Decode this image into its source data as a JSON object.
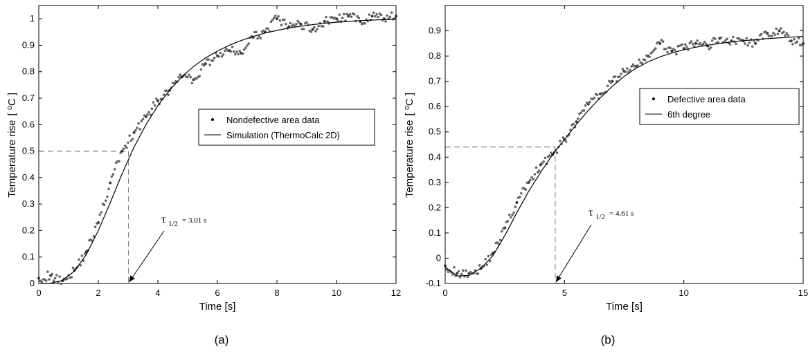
{
  "chart_data": [
    {
      "type": "scatter",
      "panel_label": "(a)",
      "xlabel": "Time [s]",
      "ylabel": "Temperature rise",
      "ylabel_unit": "[ ⁰C ]",
      "xlim": [
        0,
        12
      ],
      "ylim": [
        0,
        1.05
      ],
      "xticks": [
        0,
        2,
        4,
        6,
        8,
        10,
        12
      ],
      "xtick_labels": [
        "0",
        "2",
        "4",
        "6",
        "8",
        "10",
        "12"
      ],
      "yticks": [
        0,
        0.1,
        0.2,
        0.3,
        0.4,
        0.5,
        0.6,
        0.7,
        0.8,
        0.9,
        1
      ],
      "ytick_labels": [
        "0",
        "0.1",
        "0.2",
        "0.3",
        "0.4",
        "0.5",
        "0.6",
        "0.7",
        "0.8",
        "0.9",
        "1"
      ],
      "grid": false,
      "legend_position": "center-right",
      "series": [
        {
          "name": "Nondefective area data",
          "kind": "points",
          "x": [
            0,
            0.4,
            0.8,
            1.2,
            1.6,
            2,
            2.4,
            2.8,
            3.2,
            3.6,
            4,
            4.4,
            4.8,
            5.2,
            5.6,
            6,
            6.4,
            6.8,
            7.2,
            7.6,
            8,
            8.4,
            8.8,
            9.2,
            9.6,
            10,
            10.4,
            10.8,
            11.2,
            11.6,
            12
          ],
          "y": [
            0.02,
            0.03,
            0.01,
            0.05,
            0.12,
            0.23,
            0.38,
            0.5,
            0.57,
            0.63,
            0.69,
            0.73,
            0.78,
            0.77,
            0.83,
            0.86,
            0.88,
            0.87,
            0.93,
            0.95,
            1.0,
            0.97,
            0.98,
            0.96,
            0.99,
            1.0,
            1.01,
            0.99,
            1.01,
            1.0,
            1.01
          ]
        },
        {
          "name": "Simulation (ThermoCalc 2D)",
          "kind": "line",
          "x": [
            0,
            0.4,
            0.8,
            1.2,
            1.6,
            2,
            2.4,
            2.8,
            3.2,
            3.6,
            4,
            4.4,
            4.8,
            5.2,
            5.6,
            6,
            6.4,
            6.8,
            7.2,
            7.6,
            8,
            8.4,
            8.8,
            9.2,
            9.6,
            10,
            10.4,
            10.8,
            11.2,
            11.6,
            12
          ],
          "y": [
            0,
            0.001,
            0.012,
            0.047,
            0.11,
            0.2,
            0.305,
            0.415,
            0.515,
            0.6,
            0.672,
            0.731,
            0.78,
            0.82,
            0.852,
            0.878,
            0.9,
            0.918,
            0.933,
            0.946,
            0.956,
            0.965,
            0.972,
            0.978,
            0.983,
            0.987,
            0.99,
            0.993,
            0.995,
            0.997,
            0.998
          ]
        }
      ],
      "annotation": {
        "symbol": "τ",
        "subscript": "1/2",
        "value_text": "= 3.01 s",
        "x": 3.01,
        "y": 0.5
      }
    },
    {
      "type": "scatter",
      "panel_label": "(b)",
      "xlabel": "Time [s]",
      "ylabel": "Temperature rise",
      "ylabel_unit": "[ ⁰C ]",
      "xlim": [
        0,
        15
      ],
      "ylim": [
        -0.1,
        1.0
      ],
      "xticks": [
        0,
        5,
        10,
        15
      ],
      "xtick_labels": [
        "0",
        "5",
        "10",
        "15"
      ],
      "yticks": [
        -0.1,
        0,
        0.1,
        0.2,
        0.3,
        0.4,
        0.5,
        0.6,
        0.7,
        0.8,
        0.9
      ],
      "ytick_labels": [
        "-0.1",
        "0",
        "0.1",
        "0.2",
        "0.3",
        "0.4",
        "0.5",
        "0.6",
        "0.7",
        "0.8",
        "0.9"
      ],
      "grid": false,
      "legend_position": "center-right",
      "series": [
        {
          "name": "Defective area data",
          "kind": "points",
          "x": [
            0,
            0.5,
            1,
            1.5,
            2,
            2.5,
            3,
            3.5,
            4,
            4.5,
            5,
            5.5,
            6,
            6.5,
            7,
            7.5,
            8,
            8.5,
            9,
            9.5,
            10,
            10.5,
            11,
            11.5,
            12,
            12.5,
            13,
            13.5,
            14,
            14.5,
            15
          ],
          "y": [
            -0.03,
            -0.06,
            -0.06,
            -0.04,
            0.02,
            0.12,
            0.22,
            0.3,
            0.37,
            0.41,
            0.47,
            0.54,
            0.61,
            0.65,
            0.7,
            0.74,
            0.76,
            0.8,
            0.85,
            0.82,
            0.83,
            0.85,
            0.84,
            0.87,
            0.86,
            0.86,
            0.85,
            0.89,
            0.9,
            0.86,
            0.85
          ]
        },
        {
          "name": "6th degree",
          "kind": "line",
          "x": [
            0,
            0.5,
            1,
            1.5,
            2,
            2.5,
            3,
            3.5,
            4,
            4.5,
            5,
            5.5,
            6,
            6.5,
            7,
            7.5,
            8,
            8.5,
            9,
            9.5,
            10,
            10.5,
            11,
            11.5,
            12,
            12.5,
            13,
            13.5,
            14,
            14.5,
            15
          ],
          "y": [
            -0.035,
            -0.07,
            -0.068,
            -0.04,
            0.01,
            0.09,
            0.18,
            0.265,
            0.34,
            0.41,
            0.47,
            0.53,
            0.585,
            0.635,
            0.68,
            0.72,
            0.752,
            0.777,
            0.797,
            0.812,
            0.825,
            0.835,
            0.843,
            0.85,
            0.856,
            0.861,
            0.865,
            0.869,
            0.872,
            0.875,
            0.878
          ]
        }
      ],
      "annotation": {
        "symbol": "τ",
        "subscript": "1/2",
        "value_text": "= 4.61 s",
        "x": 4.61,
        "y": 0.44
      }
    }
  ]
}
